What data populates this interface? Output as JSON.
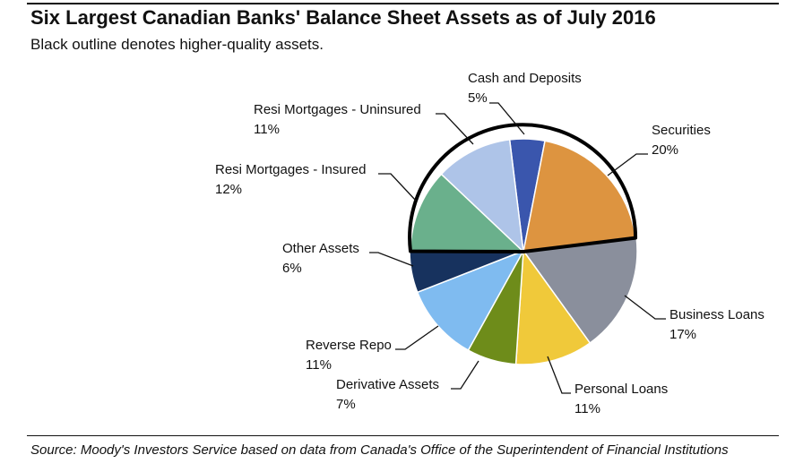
{
  "title": "Six Largest Canadian Banks' Balance Sheet Assets as of July 2016",
  "subtitle": "Black outline denotes higher-quality assets.",
  "source": "Source: Moody's Investors Service based on data from Canada's Office of the Superintendent of Financial Institutions",
  "chart_data": {
    "type": "pie",
    "title": "Six Largest Canadian Banks' Balance Sheet Assets as of July 2016",
    "subtitle": "Black outline denotes higher-quality assets.",
    "slices": [
      {
        "name": "Cash and Deposits",
        "value": 5,
        "label": "5%",
        "color": "#3a56ad",
        "outlined": true
      },
      {
        "name": "Securities",
        "value": 20,
        "label": "20%",
        "color": "#dd9440",
        "outlined": true
      },
      {
        "name": "Business Loans",
        "value": 17,
        "label": "17%",
        "color": "#8a8f9c",
        "outlined": false
      },
      {
        "name": "Personal Loans",
        "value": 11,
        "label": "11%",
        "color": "#f0c93a",
        "outlined": false
      },
      {
        "name": "Derivative Assets",
        "value": 7,
        "label": "7%",
        "color": "#6e8c1a",
        "outlined": false
      },
      {
        "name": "Reverse Repo",
        "value": 11,
        "label": "11%",
        "color": "#7fbbf0",
        "outlined": false
      },
      {
        "name": "Other Assets",
        "value": 6,
        "label": "6%",
        "color": "#17325e",
        "outlined": false
      },
      {
        "name": "Resi Mortgages - Insured",
        "value": 12,
        "label": "12%",
        "color": "#6ab08c",
        "outlined": true
      },
      {
        "name": "Resi Mortgages - Uninsured",
        "value": 11,
        "label": "11%",
        "color": "#aec4e8",
        "outlined": true
      }
    ],
    "legend": "none",
    "note": "Black outline denotes higher-quality assets."
  }
}
